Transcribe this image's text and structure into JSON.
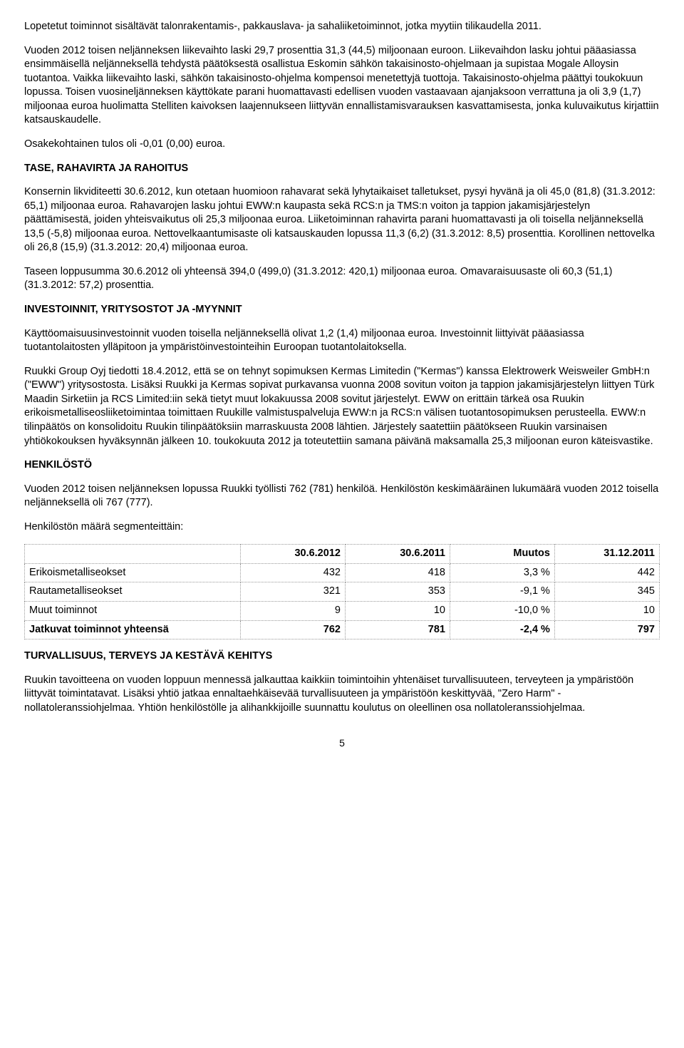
{
  "p1": "Lopetetut toiminnot sisältävät talonrakentamis-, pakkauslava- ja sahaliiketoiminnot, jotka myytiin tilikaudella 2011.",
  "p2": "Vuoden 2012 toisen neljänneksen liikevaihto laski 29,7 prosenttia 31,3 (44,5) miljoonaan euroon. Liikevaihdon lasku johtui pääasiassa ensimmäisellä neljänneksellä tehdystä päätöksestä osallistua Eskomin sähkön takaisinosto-ohjelmaan ja supistaa Mogale Alloysin tuotantoa. Vaikka liikevaihto laski, sähkön takaisinosto-ohjelma kompensoi menetettyjä tuottoja. Takaisinosto-ohjelma päättyi toukokuun lopussa. Toisen vuosineljänneksen käyttökate parani huomattavasti edellisen vuoden vastaavaan ajanjaksoon verrattuna ja oli 3,9 (1,7) miljoonaa euroa huolimatta Stelliten kaivoksen laajennukseen liittyvän ennallistamisvarauksen kasvattamisesta, jonka kuluvaikutus kirjattiin katsauskaudelle.",
  "p3": "Osakekohtainen tulos oli -0,01 (0,00) euroa.",
  "h1": "TASE, RAHAVIRTA JA RAHOITUS",
  "p4": "Konsernin likviditeetti 30.6.2012, kun otetaan huomioon rahavarat sekä lyhytaikaiset talletukset, pysyi hyvänä ja oli 45,0 (81,8) (31.3.2012: 65,1) miljoonaa euroa. Rahavarojen lasku johtui EWW:n kaupasta sekä RCS:n ja TMS:n voiton ja tappion jakamisjärjestelyn päättämisestä, joiden yhteisvaikutus oli 25,3 miljoonaa euroa. Liiketoiminnan rahavirta parani huomattavasti ja oli toisella neljänneksellä 13,5 (-5,8) miljoonaa euroa.  Nettovelkaantumisaste oli katsauskauden lopussa 11,3 (6,2) (31.3.2012: 8,5) prosenttia. Korollinen nettovelka oli 26,8 (15,9) (31.3.2012: 20,4) miljoonaa euroa.",
  "p5": "Taseen loppusumma 30.6.2012 oli yhteensä 394,0 (499,0) (31.3.2012: 420,1) miljoonaa euroa. Omavaraisuusaste oli 60,3 (51,1) (31.3.2012: 57,2) prosenttia.",
  "h2": "INVESTOINNIT, YRITYSOSTOT JA -MYYNNIT",
  "p6": "Käyttöomaisuusinvestoinnit vuoden toisella neljänneksellä olivat 1,2 (1,4) miljoonaa euroa. Investoinnit liittyivät pääasiassa tuotantolaitosten ylläpitoon ja ympäristöinvestointeihin Euroopan tuotantolaitoksella.",
  "p7": "Ruukki Group Oyj tiedotti 18.4.2012, että se on tehnyt sopimuksen Kermas Limitedin (\"Kermas\") kanssa Elektrowerk Weisweiler GmbH:n (\"EWW\") yritysostosta. Lisäksi Ruukki ja Kermas sopivat purkavansa vuonna 2008 sovitun voiton ja tappion jakamisjärjestelyn liittyen Türk Maadin Sirketiin ja RCS Limited:iin sekä tietyt muut lokakuussa 2008 sovitut järjestelyt. EWW on erittäin tärkeä osa Ruukin erikoismetalliseosliiketoimintaa toimittaen Ruukille valmistuspalveluja EWW:n ja RCS:n välisen tuotantosopimuksen perusteella. EWW:n tilinpäätös on konsolidoitu Ruukin tilinpäätöksiin marraskuusta 2008 lähtien. Järjestely saatettiin päätökseen Ruukin varsinaisen yhtiökokouksen hyväksynnän jälkeen 10. toukokuuta 2012 ja toteutettiin samana päivänä maksamalla 25,3 miljoonan euron käteisvastike.",
  "h3": "HENKILÖSTÖ",
  "p8": "Vuoden 2012 toisen neljänneksen lopussa Ruukki työllisti 762 (781) henkilöä. Henkilöstön keskimääräinen lukumäärä vuoden 2012 toisella neljänneksellä oli 767 (777).",
  "p9": "Henkilöstön määrä segmenteittäin:",
  "table": {
    "headers": [
      "",
      "30.6.2012",
      "30.6.2011",
      "Muutos",
      "31.12.2011"
    ],
    "rows": [
      [
        "Erikoismetalliseokset",
        "432",
        "418",
        "3,3 %",
        "442"
      ],
      [
        "Rautametalliseokset",
        "321",
        "353",
        "-9,1 %",
        "345"
      ],
      [
        "Muut toiminnot",
        "9",
        "10",
        "-10,0 %",
        "10"
      ]
    ],
    "total": [
      "Jatkuvat toiminnot yhteensä",
      "762",
      "781",
      "-2,4 %",
      "797"
    ]
  },
  "h4": "TURVALLISUUS, TERVEYS JA KESTÄVÄ KEHITYS",
  "p10": "Ruukin tavoitteena on vuoden loppuun mennessä jalkauttaa kaikkiin toimintoihin yhtenäiset turvallisuuteen, terveyteen ja ympäristöön liittyvät toimintatavat. Lisäksi yhtiö jatkaa ennaltaehkäisevää turvallisuuteen ja ympäristöön keskittyvää, \"Zero Harm\" -nollatoleranssiohjelmaa. Yhtiön henkilöstölle ja alihankkijoille suunnattu koulutus on oleellinen osa nollatoleranssiohjelmaa.",
  "pageNumber": "5"
}
